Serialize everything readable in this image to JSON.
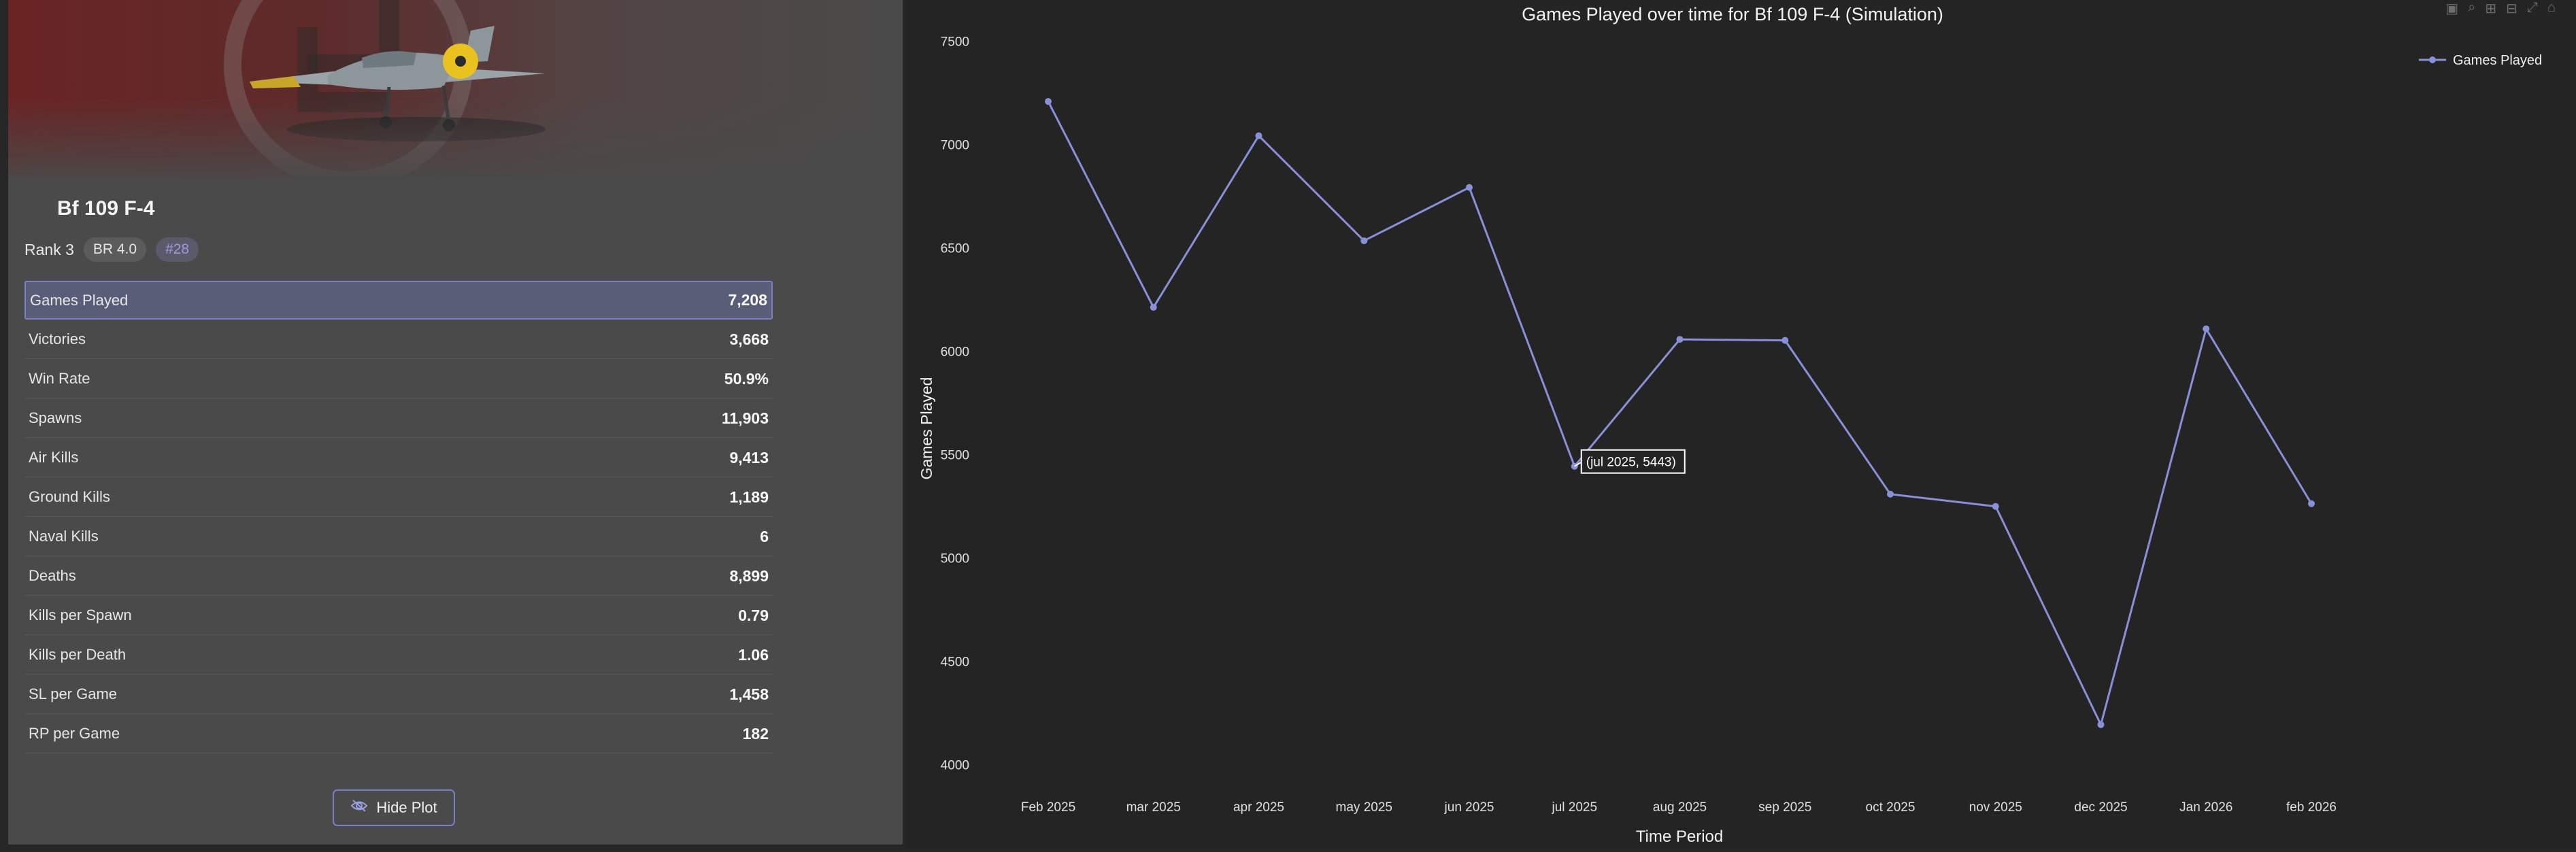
{
  "vehicle": {
    "name": "Bf 109 F-4",
    "rank": "Rank 3",
    "br": "BR 4.0",
    "position": "#28"
  },
  "stats": [
    {
      "label": "Games Played",
      "value": "7,208",
      "highlight": true
    },
    {
      "label": "Victories",
      "value": "3,668"
    },
    {
      "label": "Win Rate",
      "value": "50.9%"
    },
    {
      "label": "Spawns",
      "value": "11,903"
    },
    {
      "label": "Air Kills",
      "value": "9,413"
    },
    {
      "label": "Ground Kills",
      "value": "1,189"
    },
    {
      "label": "Naval Kills",
      "value": "6"
    },
    {
      "label": "Deaths",
      "value": "8,899"
    },
    {
      "label": "Kills per Spawn",
      "value": "0.79"
    },
    {
      "label": "Kills per Death",
      "value": "1.06"
    },
    {
      "label": "SL per Game",
      "value": "1,458"
    },
    {
      "label": "RP per Game",
      "value": "182"
    }
  ],
  "hide_plot_label": "Hide Plot",
  "icons": {
    "hide": "eye-slash-icon",
    "modebar": [
      "camera-icon",
      "zoom-icon",
      "zoom-in-icon",
      "zoom-out-icon",
      "autoscale-icon",
      "home-icon"
    ]
  },
  "colors": {
    "accent": "#7a80c8",
    "series": "#8890d8"
  },
  "chart_data": {
    "type": "line",
    "title": "Games Played over time for Bf 109 F-4 (Simulation)",
    "xlabel": "Time Period",
    "ylabel": "Games Played",
    "categories": [
      "Feb 2025",
      "mar 2025",
      "apr 2025",
      "may 2025",
      "jun 2025",
      "jul 2025",
      "aug 2025",
      "sep 2025",
      "oct 2025",
      "nov 2025",
      "dec 2025",
      "Jan 2026",
      "feb 2026"
    ],
    "series": [
      {
        "name": "Games Played",
        "values": [
          7208,
          6212,
          7042,
          6534,
          6792,
          5443,
          6057,
          6052,
          5308,
          5249,
          4193,
          6108,
          5262
        ]
      }
    ],
    "ylim": [
      3850,
      7600
    ],
    "yticks": [
      4000,
      4500,
      5000,
      5500,
      6000,
      6500,
      7000,
      7500
    ],
    "legend": "top-right",
    "grid": false,
    "hover_label": "(jul 2025, 5443)"
  }
}
